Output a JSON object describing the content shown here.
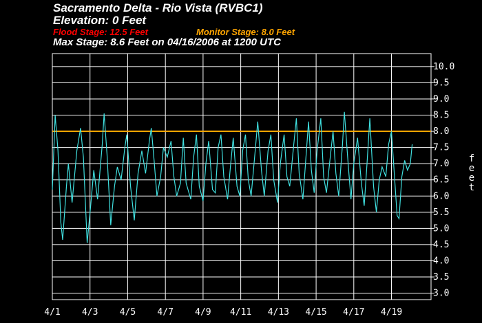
{
  "header": {
    "title": "Sacramento Delta - Rio Vista (RVBC1)",
    "elevation": "Elevation: 0 Feet",
    "flood_stage": "Flood Stage: 12.5 Feet",
    "monitor_stage": "Monitor Stage: 8.0 Feet",
    "max_stage": "Max Stage: 8.6 Feet on 04/16/2006 at 1200 UTC"
  },
  "colors": {
    "background": "#000000",
    "grid": "#ffffff",
    "series": "#40e0e0",
    "monitor_line": "#ffa500",
    "flood_text": "#ff0000"
  },
  "chart_data": {
    "type": "line",
    "title": "Sacramento Delta - Rio Vista (RVBC1)",
    "ylabel": "feet",
    "ylim": [
      2.8,
      10.4
    ],
    "yticks": [
      "3.0",
      "3.5",
      "4.0",
      "4.5",
      "5.0",
      "5.5",
      "6.0",
      "6.5",
      "7.0",
      "7.5",
      "8.0",
      "8.5",
      "9.0",
      "9.5",
      "10.0"
    ],
    "xlim": [
      0,
      20.1
    ],
    "xticks": [
      {
        "x": 0,
        "label": "4/1"
      },
      {
        "x": 2,
        "label": "4/3"
      },
      {
        "x": 4,
        "label": "4/5"
      },
      {
        "x": 6,
        "label": "4/7"
      },
      {
        "x": 8,
        "label": "4/9"
      },
      {
        "x": 10,
        "label": "4/11"
      },
      {
        "x": 12,
        "label": "4/13"
      },
      {
        "x": 14,
        "label": "4/15"
      },
      {
        "x": 16,
        "label": "4/17"
      },
      {
        "x": 18,
        "label": "4/19"
      }
    ],
    "threshold": {
      "value": 8.0
    },
    "series": [
      {
        "points": [
          [
            0.0,
            6.2
          ],
          [
            0.15,
            8.5
          ],
          [
            0.3,
            7.4
          ],
          [
            0.45,
            5.2
          ],
          [
            0.55,
            4.65
          ],
          [
            0.75,
            6.3
          ],
          [
            0.85,
            7.0
          ],
          [
            1.05,
            5.8
          ],
          [
            1.3,
            7.4
          ],
          [
            1.5,
            8.1
          ],
          [
            1.65,
            7.2
          ],
          [
            1.85,
            4.55
          ],
          [
            2.05,
            5.8
          ],
          [
            2.2,
            6.8
          ],
          [
            2.4,
            5.9
          ],
          [
            2.65,
            7.6
          ],
          [
            2.75,
            8.55
          ],
          [
            2.9,
            7.3
          ],
          [
            3.1,
            5.1
          ],
          [
            3.3,
            6.3
          ],
          [
            3.45,
            6.9
          ],
          [
            3.65,
            6.5
          ],
          [
            3.85,
            7.5
          ],
          [
            3.95,
            7.9
          ],
          [
            4.15,
            6.3
          ],
          [
            4.35,
            5.25
          ],
          [
            4.55,
            6.7
          ],
          [
            4.75,
            7.4
          ],
          [
            4.95,
            6.7
          ],
          [
            5.15,
            7.7
          ],
          [
            5.25,
            8.1
          ],
          [
            5.4,
            7.1
          ],
          [
            5.55,
            6.0
          ],
          [
            5.75,
            6.6
          ],
          [
            5.9,
            7.5
          ],
          [
            6.1,
            7.2
          ],
          [
            6.3,
            7.7
          ],
          [
            6.45,
            6.6
          ],
          [
            6.6,
            6.0
          ],
          [
            6.8,
            6.4
          ],
          [
            6.95,
            7.8
          ],
          [
            7.1,
            6.4
          ],
          [
            7.35,
            5.9
          ],
          [
            7.5,
            7.2
          ],
          [
            7.65,
            7.9
          ],
          [
            7.8,
            6.3
          ],
          [
            8.0,
            5.85
          ],
          [
            8.15,
            7.0
          ],
          [
            8.3,
            7.7
          ],
          [
            8.5,
            6.2
          ],
          [
            8.65,
            6.1
          ],
          [
            8.8,
            7.5
          ],
          [
            8.95,
            7.9
          ],
          [
            9.1,
            6.6
          ],
          [
            9.3,
            5.9
          ],
          [
            9.45,
            6.9
          ],
          [
            9.6,
            7.8
          ],
          [
            9.8,
            6.3
          ],
          [
            9.95,
            6.0
          ],
          [
            10.1,
            7.4
          ],
          [
            10.25,
            7.9
          ],
          [
            10.4,
            6.5
          ],
          [
            10.55,
            6.0
          ],
          [
            10.75,
            7.3
          ],
          [
            10.9,
            8.3
          ],
          [
            11.1,
            6.8
          ],
          [
            11.25,
            6.0
          ],
          [
            11.45,
            7.4
          ],
          [
            11.6,
            7.9
          ],
          [
            11.75,
            6.5
          ],
          [
            11.95,
            5.8
          ],
          [
            12.1,
            7.0
          ],
          [
            12.3,
            7.9
          ],
          [
            12.45,
            6.6
          ],
          [
            12.6,
            6.3
          ],
          [
            12.8,
            7.5
          ],
          [
            12.95,
            8.4
          ],
          [
            13.1,
            6.7
          ],
          [
            13.3,
            5.9
          ],
          [
            13.45,
            7.1
          ],
          [
            13.6,
            8.3
          ],
          [
            13.75,
            6.8
          ],
          [
            13.9,
            6.1
          ],
          [
            14.05,
            7.4
          ],
          [
            14.25,
            8.4
          ],
          [
            14.4,
            6.6
          ],
          [
            14.55,
            6.1
          ],
          [
            14.75,
            7.2
          ],
          [
            14.9,
            8.0
          ],
          [
            15.05,
            6.7
          ],
          [
            15.2,
            6.0
          ],
          [
            15.4,
            7.6
          ],
          [
            15.5,
            8.6
          ],
          [
            15.7,
            7.0
          ],
          [
            15.85,
            5.9
          ],
          [
            16.0,
            7.0
          ],
          [
            16.2,
            7.8
          ],
          [
            16.4,
            6.4
          ],
          [
            16.55,
            5.7
          ],
          [
            16.7,
            7.0
          ],
          [
            16.85,
            8.4
          ],
          [
            17.05,
            6.3
          ],
          [
            17.2,
            5.5
          ],
          [
            17.35,
            6.5
          ],
          [
            17.5,
            6.9
          ],
          [
            17.7,
            6.6
          ],
          [
            17.85,
            7.6
          ],
          [
            18.0,
            8.0
          ],
          [
            18.15,
            6.7
          ],
          [
            18.3,
            5.4
          ],
          [
            18.4,
            5.3
          ],
          [
            18.55,
            6.6
          ],
          [
            18.7,
            7.1
          ],
          [
            18.85,
            6.8
          ],
          [
            19.0,
            7.0
          ],
          [
            19.1,
            7.6
          ]
        ]
      }
    ]
  }
}
